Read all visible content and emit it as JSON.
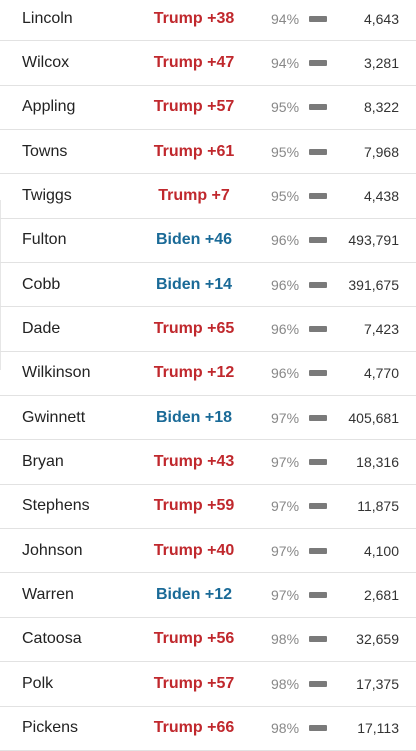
{
  "rows": [
    {
      "county": "Lincoln",
      "margin": "Trump +38",
      "party": "trump",
      "reported": "94%",
      "votes": "4,643"
    },
    {
      "county": "Wilcox",
      "margin": "Trump +47",
      "party": "trump",
      "reported": "94%",
      "votes": "3,281"
    },
    {
      "county": "Appling",
      "margin": "Trump +57",
      "party": "trump",
      "reported": "95%",
      "votes": "8,322"
    },
    {
      "county": "Towns",
      "margin": "Trump +61",
      "party": "trump",
      "reported": "95%",
      "votes": "7,968"
    },
    {
      "county": "Twiggs",
      "margin": "Trump +7",
      "party": "trump",
      "reported": "95%",
      "votes": "4,438"
    },
    {
      "county": "Fulton",
      "margin": "Biden +46",
      "party": "biden",
      "reported": "96%",
      "votes": "493,791"
    },
    {
      "county": "Cobb",
      "margin": "Biden +14",
      "party": "biden",
      "reported": "96%",
      "votes": "391,675"
    },
    {
      "county": "Dade",
      "margin": "Trump +65",
      "party": "trump",
      "reported": "96%",
      "votes": "7,423"
    },
    {
      "county": "Wilkinson",
      "margin": "Trump +12",
      "party": "trump",
      "reported": "96%",
      "votes": "4,770"
    },
    {
      "county": "Gwinnett",
      "margin": "Biden +18",
      "party": "biden",
      "reported": "97%",
      "votes": "405,681"
    },
    {
      "county": "Bryan",
      "margin": "Trump +43",
      "party": "trump",
      "reported": "97%",
      "votes": "18,316"
    },
    {
      "county": "Stephens",
      "margin": "Trump +59",
      "party": "trump",
      "reported": "97%",
      "votes": "11,875"
    },
    {
      "county": "Johnson",
      "margin": "Trump +40",
      "party": "trump",
      "reported": "97%",
      "votes": "4,100"
    },
    {
      "county": "Warren",
      "margin": "Biden +12",
      "party": "biden",
      "reported": "97%",
      "votes": "2,681"
    },
    {
      "county": "Catoosa",
      "margin": "Trump +56",
      "party": "trump",
      "reported": "98%",
      "votes": "32,659"
    },
    {
      "county": "Polk",
      "margin": "Trump +57",
      "party": "trump",
      "reported": "98%",
      "votes": "17,375"
    },
    {
      "county": "Pickens",
      "margin": "Trump +66",
      "party": "trump",
      "reported": "98%",
      "votes": "17,113"
    }
  ],
  "colors": {
    "trump": "#c0282d",
    "biden": "#1a6a97",
    "bar": "#7a7a7a"
  }
}
